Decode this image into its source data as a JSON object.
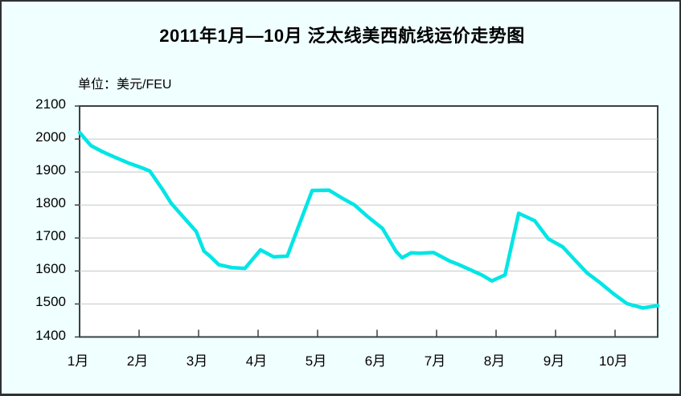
{
  "page": {
    "background": "#F0FFFF",
    "frame_border_color": "#2B3335"
  },
  "title": "2011年1月—10月 泛太线美西航线运价走势图",
  "unit_label": "单位：美元/FEU",
  "chart_data": {
    "type": "line",
    "title": "2011年1月—10月 泛太线美西航线运价走势图",
    "unit": "美元/FEU",
    "ylim": [
      1400,
      2100
    ],
    "ytick_step": 100,
    "yticks": [
      2100,
      2000,
      1900,
      1800,
      1700,
      1600,
      1500,
      1400
    ],
    "xticks": [
      "1月",
      "2月",
      "3月",
      "4月",
      "5月",
      "6月",
      "7月",
      "8月",
      "9月",
      "10月"
    ],
    "x_axis_start_month": 1,
    "x_axis_end_month": 10.73,
    "grid": true,
    "legend": false,
    "plot_background": "#FFFFFF",
    "gridline_color": "#C4C8C8",
    "axis_color": "#3A4143",
    "line_color": "#00E5E5",
    "line_width": 4.5,
    "series": [
      {
        "name": "美西航线运价",
        "points_month_value": [
          [
            1.0,
            2020
          ],
          [
            1.19,
            1980
          ],
          [
            1.38,
            1962
          ],
          [
            1.58,
            1946
          ],
          [
            1.81,
            1928
          ],
          [
            2.0,
            1916
          ],
          [
            2.18,
            1903
          ],
          [
            2.39,
            1848
          ],
          [
            2.54,
            1805
          ],
          [
            2.84,
            1744
          ],
          [
            2.96,
            1720
          ],
          [
            3.09,
            1660
          ],
          [
            3.19,
            1645
          ],
          [
            3.34,
            1619
          ],
          [
            3.57,
            1610
          ],
          [
            3.78,
            1608
          ],
          [
            4.04,
            1664
          ],
          [
            4.26,
            1643
          ],
          [
            4.49,
            1645
          ],
          [
            4.7,
            1745
          ],
          [
            4.91,
            1844
          ],
          [
            5.19,
            1845
          ],
          [
            5.42,
            1820
          ],
          [
            5.62,
            1800
          ],
          [
            5.86,
            1762
          ],
          [
            6.09,
            1729
          ],
          [
            6.32,
            1659
          ],
          [
            6.42,
            1640
          ],
          [
            6.57,
            1655
          ],
          [
            6.72,
            1654
          ],
          [
            6.95,
            1656
          ],
          [
            7.22,
            1630
          ],
          [
            7.35,
            1621
          ],
          [
            7.55,
            1605
          ],
          [
            7.76,
            1588
          ],
          [
            7.93,
            1570
          ],
          [
            8.15,
            1588
          ],
          [
            8.38,
            1775
          ],
          [
            8.65,
            1752
          ],
          [
            8.88,
            1697
          ],
          [
            9.12,
            1673
          ],
          [
            9.32,
            1634
          ],
          [
            9.53,
            1594
          ],
          [
            9.73,
            1567
          ],
          [
            9.96,
            1533
          ],
          [
            10.2,
            1501
          ],
          [
            10.47,
            1488
          ],
          [
            10.73,
            1495
          ]
        ]
      }
    ]
  }
}
